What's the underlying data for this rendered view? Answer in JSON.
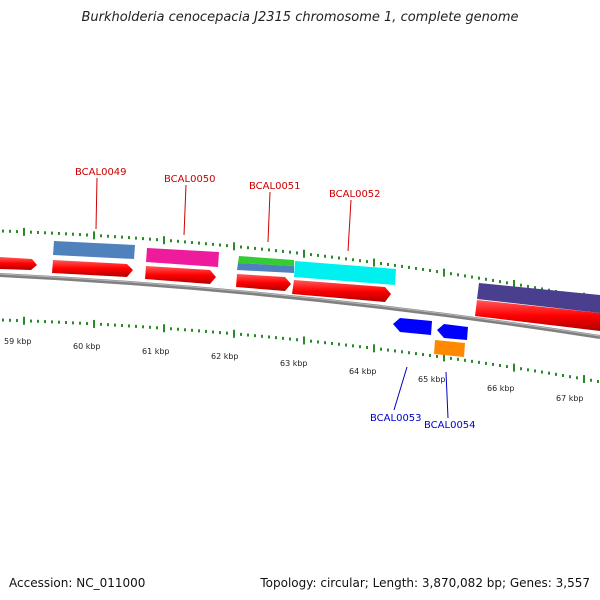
{
  "title": "Burkholderia cenocepacia J2315 chromosome 1, complete genome",
  "accession": "Accession: NC_011000",
  "topology": "Topology: circular; Length: 3,870,082 bp; Genes: 3,557",
  "colors": {
    "backbone": "#808080",
    "tick": "#2a8a2a",
    "forward_label": "#cc0000",
    "reverse_label": "#0000cc",
    "cds": "#ff0000"
  },
  "scale": {
    "labels": [
      "59 kbp",
      "60 kbp",
      "61 kbp",
      "62 kbp",
      "63 kbp",
      "64 kbp",
      "65 kbp",
      "66 kbp",
      "67 kbp"
    ]
  },
  "genes": [
    {
      "id": "BCAL0049",
      "strand": "forward",
      "color": "#4f81bd"
    },
    {
      "id": "BCAL0050",
      "strand": "forward",
      "color": "#ee1b9c"
    },
    {
      "id": "BCAL0051",
      "strand": "forward",
      "color": "#33cc33"
    },
    {
      "id": "BCAL0052",
      "strand": "forward",
      "color": "#00f0f0"
    },
    {
      "id": "BCAL0053",
      "strand": "reverse",
      "color": "#0000ff"
    },
    {
      "id": "BCAL0054",
      "strand": "reverse",
      "color": "#ff8800"
    }
  ]
}
